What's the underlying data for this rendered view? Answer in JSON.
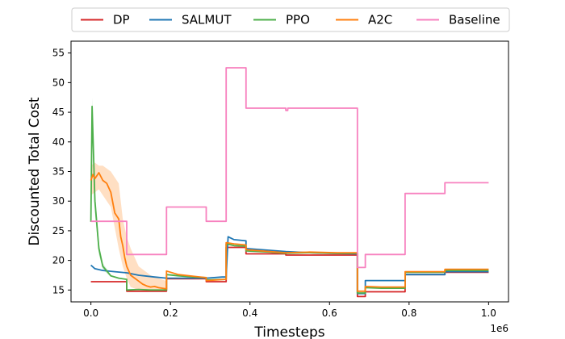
{
  "chart_data": {
    "type": "line",
    "title": "",
    "xlabel": "Timesteps",
    "ylabel": "Discounted Total Cost",
    "x_offset_label": "1e6",
    "xlim": [
      -0.05,
      1.05
    ],
    "ylim": [
      13,
      57
    ],
    "x_ticks": [
      0.0,
      0.2,
      0.4,
      0.6,
      0.8,
      1.0
    ],
    "x_tick_labels": [
      "0.0",
      "0.2",
      "0.4",
      "0.6",
      "0.8",
      "1.0"
    ],
    "y_ticks": [
      15,
      20,
      25,
      30,
      35,
      40,
      45,
      50,
      55
    ],
    "y_tick_labels": [
      "15",
      "20",
      "25",
      "30",
      "35",
      "40",
      "45",
      "50",
      "55"
    ],
    "grid": false,
    "legend": {
      "placement": "top-outside",
      "columns": 5
    },
    "series": [
      {
        "name": "DP",
        "color": "#d62728",
        "x": [
          0.0,
          0.09,
          0.09,
          0.19,
          0.19,
          0.29,
          0.29,
          0.34,
          0.34,
          0.39,
          0.39,
          0.49,
          0.49,
          0.67,
          0.67,
          0.69,
          0.69,
          0.79,
          0.79,
          0.89,
          0.89,
          1.0
        ],
        "y": [
          16.4,
          16.4,
          14.8,
          14.8,
          16.9,
          16.9,
          16.4,
          16.4,
          22.2,
          22.2,
          21.1,
          21.1,
          20.9,
          20.9,
          13.9,
          13.9,
          14.7,
          14.7,
          17.6,
          17.6,
          18.0,
          18.0
        ]
      },
      {
        "name": "SALMUT",
        "color": "#1f77b4",
        "x": [
          0.0,
          0.01,
          0.03,
          0.06,
          0.09,
          0.12,
          0.16,
          0.19,
          0.24,
          0.29,
          0.33,
          0.34,
          0.345,
          0.36,
          0.39,
          0.39,
          0.45,
          0.49,
          0.55,
          0.6,
          0.67,
          0.67,
          0.69,
          0.69,
          0.79,
          0.79,
          0.89,
          0.89,
          1.0
        ],
        "y": [
          19.2,
          18.6,
          18.3,
          18.1,
          17.9,
          17.5,
          17.2,
          17.0,
          17.0,
          17.0,
          17.2,
          17.2,
          24.0,
          23.5,
          23.3,
          22.0,
          21.7,
          21.5,
          21.3,
          21.2,
          21.1,
          14.4,
          14.4,
          16.6,
          16.6,
          17.6,
          17.6,
          18.1,
          18.1
        ]
      },
      {
        "name": "PPO",
        "color": "#4daf4a",
        "x": [
          0.0,
          0.003,
          0.01,
          0.02,
          0.03,
          0.05,
          0.07,
          0.09,
          0.09,
          0.12,
          0.15,
          0.19,
          0.19,
          0.22,
          0.26,
          0.29,
          0.29,
          0.34,
          0.34,
          0.36,
          0.39,
          0.39,
          0.45,
          0.49,
          0.55,
          0.62,
          0.67,
          0.67,
          0.69,
          0.69,
          0.73,
          0.79,
          0.79,
          0.89,
          0.89,
          1.0
        ],
        "y": [
          26.5,
          46.0,
          30.0,
          22.0,
          19.0,
          17.4,
          17.0,
          16.8,
          15.0,
          15.1,
          15.0,
          15.0,
          17.6,
          17.4,
          17.2,
          17.1,
          16.7,
          16.8,
          22.8,
          22.5,
          22.4,
          21.6,
          21.4,
          21.2,
          21.3,
          21.2,
          21.2,
          14.5,
          14.5,
          15.4,
          15.3,
          15.3,
          18.0,
          18.0,
          18.3,
          18.3
        ]
      },
      {
        "name": "A2C",
        "color": "#ff7f0e",
        "x": [
          0.0,
          0.005,
          0.01,
          0.02,
          0.03,
          0.04,
          0.05,
          0.06,
          0.07,
          0.075,
          0.08,
          0.085,
          0.09,
          0.1,
          0.11,
          0.12,
          0.13,
          0.14,
          0.15,
          0.16,
          0.17,
          0.18,
          0.19,
          0.19,
          0.22,
          0.26,
          0.29,
          0.29,
          0.34,
          0.34,
          0.36,
          0.39,
          0.39,
          0.45,
          0.49,
          0.55,
          0.62,
          0.67,
          0.67,
          0.69,
          0.69,
          0.73,
          0.79,
          0.79,
          0.89,
          0.89,
          1.0
        ],
        "y": [
          33.5,
          34.5,
          33.8,
          34.8,
          33.5,
          33.0,
          31.5,
          28.0,
          27.0,
          24.0,
          22.5,
          20.5,
          19.0,
          17.5,
          17.0,
          16.5,
          16.0,
          15.7,
          15.5,
          15.6,
          15.4,
          15.3,
          15.2,
          18.2,
          17.6,
          17.3,
          17.1,
          16.6,
          16.8,
          23.0,
          22.8,
          22.6,
          21.8,
          21.5,
          21.3,
          21.4,
          21.3,
          21.3,
          14.8,
          14.8,
          15.6,
          15.5,
          15.5,
          18.1,
          18.1,
          18.5,
          18.5
        ]
      },
      {
        "name": "Baseline",
        "color": "#f781bf",
        "x": [
          0.0,
          0.09,
          0.09,
          0.19,
          0.19,
          0.29,
          0.29,
          0.34,
          0.34,
          0.39,
          0.39,
          0.49,
          0.49,
          0.495,
          0.495,
          0.67,
          0.67,
          0.69,
          0.69,
          0.79,
          0.79,
          0.89,
          0.89,
          1.0
        ],
        "y": [
          26.6,
          26.6,
          21.0,
          21.0,
          29.0,
          29.0,
          26.6,
          26.6,
          52.5,
          52.5,
          45.7,
          45.7,
          45.3,
          45.3,
          45.7,
          45.7,
          18.8,
          18.8,
          21.0,
          21.0,
          31.3,
          31.3,
          33.1,
          33.1
        ]
      }
    ],
    "bands": [
      {
        "series": "A2C",
        "color": "#ff7f0e",
        "opacity": 0.25,
        "x": [
          0.0,
          0.01,
          0.02,
          0.03,
          0.05,
          0.07,
          0.08,
          0.09,
          0.1,
          0.12,
          0.15,
          0.19
        ],
        "upper": [
          36.0,
          36.5,
          36.0,
          36.0,
          35.0,
          33.0,
          27.0,
          24.0,
          22.0,
          19.0,
          17.5,
          16.5
        ],
        "lower": [
          31.0,
          31.5,
          32.0,
          31.0,
          29.0,
          22.0,
          19.0,
          17.0,
          15.5,
          15.0,
          14.8,
          14.7
        ]
      },
      {
        "series": "PPO",
        "color": "#4daf4a",
        "opacity": 0.25,
        "x": [
          0.0,
          0.003,
          0.01,
          0.02,
          0.03,
          0.05
        ],
        "upper": [
          27.0,
          47.5,
          32.0,
          23.0,
          19.5,
          17.6
        ],
        "lower": [
          26.0,
          44.5,
          28.0,
          21.0,
          18.5,
          17.2
        ]
      }
    ]
  }
}
